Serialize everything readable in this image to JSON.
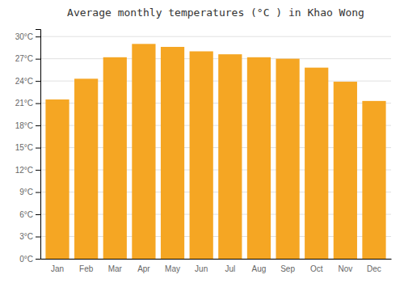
{
  "chart_data": {
    "type": "bar",
    "title": "Average monthly temperatures (°C ) in Khao Wong",
    "categories": [
      "Jan",
      "Feb",
      "Mar",
      "Apr",
      "May",
      "Jun",
      "Jul",
      "Aug",
      "Sep",
      "Oct",
      "Nov",
      "Dec"
    ],
    "values": [
      21.5,
      24.3,
      27.2,
      29.0,
      28.6,
      28.0,
      27.6,
      27.2,
      27.0,
      25.8,
      23.9,
      21.3
    ],
    "color": "#F5A623",
    "ylim": [
      0,
      31
    ],
    "yticks": [
      {
        "value": 0,
        "label": "0°C"
      },
      {
        "value": 3,
        "label": "3°C"
      },
      {
        "value": 6,
        "label": "6°C"
      },
      {
        "value": 9,
        "label": "9°C"
      },
      {
        "value": 12,
        "label": "12°C"
      },
      {
        "value": 15,
        "label": "15°C"
      },
      {
        "value": 18,
        "label": "18°C"
      },
      {
        "value": 21,
        "label": "21°C"
      },
      {
        "value": 24,
        "label": "24°C"
      },
      {
        "value": 27,
        "label": "27°C"
      },
      {
        "value": 30,
        "label": "30°C"
      }
    ],
    "grid": true
  }
}
